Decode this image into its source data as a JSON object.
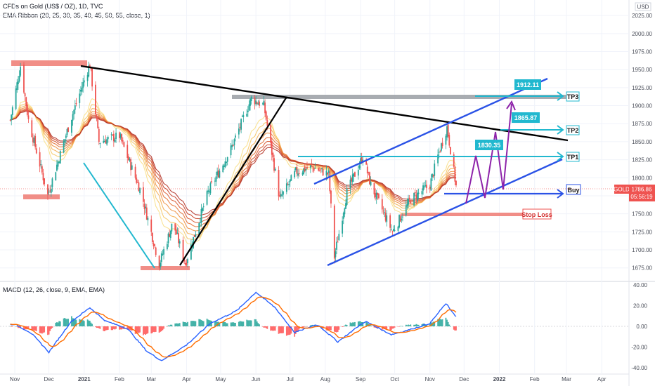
{
  "header": {
    "symbol_line": "CFDs on Gold (US$ / OZ), 1D, TVC",
    "indicator_line": "EMA Ribbon (20, 25, 30, 35, 40, 45, 50, 55, close, 1)",
    "currency": "USD",
    "macd_label": "MACD (12, 26, close, 9, EMA, EMA)"
  },
  "colors": {
    "up": "#26a69a",
    "down": "#ef5350",
    "trend": "#000000",
    "channel": "#2a52e6",
    "target": "#22b8cf",
    "projection": "#8e24aa",
    "zone": "#ef7a72",
    "resistance": "#9ea3a8",
    "macd_line": "#2962ff",
    "signal_line": "#ff6d00"
  },
  "chart_data": {
    "type": "candlestick",
    "x_tick_labels": [
      "Nov",
      "Dec",
      "2021",
      "Feb",
      "Mar",
      "Apr",
      "May",
      "Jun",
      "Jul",
      "Aug",
      "Sep",
      "Oct",
      "Nov",
      "Dec",
      "2022",
      "Feb",
      "Mar",
      "Apr"
    ],
    "price_axis": {
      "ticks": [
        "2025.00",
        "2000.00",
        "1975.00",
        "1950.00",
        "1925.00",
        "1900.00",
        "1875.00",
        "1850.00",
        "1825.00",
        "1800.00",
        "1775.00",
        "1750.00",
        "1725.00",
        "1700.00",
        "1675.00"
      ],
      "range": [
        1665,
        2030
      ]
    },
    "macd_axis": {
      "ticks": [
        "40.00",
        "20.00",
        "0.00",
        "-20.00",
        "-40.00"
      ],
      "range": [
        -42,
        42
      ]
    },
    "last_price": {
      "symbol": "GOLD",
      "value": "1786.86",
      "countdown": "05:56:19"
    },
    "price_path": [
      [
        "2020-10-28",
        1880
      ],
      [
        "2020-11-06",
        1955
      ],
      [
        "2020-11-13",
        1880
      ],
      [
        "2020-11-30",
        1776
      ],
      [
        "2020-12-20",
        1880
      ],
      [
        "2021-01-06",
        1958
      ],
      [
        "2021-01-14",
        1850
      ],
      [
        "2021-02-01",
        1858
      ],
      [
        "2021-02-20",
        1780
      ],
      [
        "2021-03-08",
        1680
      ],
      [
        "2021-03-20",
        1738
      ],
      [
        "2021-03-31",
        1681
      ],
      [
        "2021-04-20",
        1780
      ],
      [
        "2021-05-10",
        1840
      ],
      [
        "2021-05-28",
        1910
      ],
      [
        "2021-06-08",
        1900
      ],
      [
        "2021-06-22",
        1770
      ],
      [
        "2021-07-06",
        1808
      ],
      [
        "2021-07-20",
        1815
      ],
      [
        "2021-08-04",
        1805
      ],
      [
        "2021-08-09",
        1690
      ],
      [
        "2021-08-20",
        1780
      ],
      [
        "2021-09-03",
        1830
      ],
      [
        "2021-09-10",
        1790
      ],
      [
        "2021-09-29",
        1725
      ],
      [
        "2021-10-15",
        1770
      ],
      [
        "2021-11-01",
        1790
      ],
      [
        "2021-11-08",
        1830
      ],
      [
        "2021-11-16",
        1870
      ],
      [
        "2021-11-24",
        1788
      ]
    ],
    "macd_path": [
      [
        "2020-11-01",
        2
      ],
      [
        "2020-11-15",
        -6
      ],
      [
        "2020-12-01",
        -25
      ],
      [
        "2020-12-20",
        4
      ],
      [
        "2021-01-06",
        18
      ],
      [
        "2021-01-20",
        5
      ],
      [
        "2021-02-08",
        -2
      ],
      [
        "2021-02-25",
        -24
      ],
      [
        "2021-03-10",
        -33
      ],
      [
        "2021-04-01",
        -18
      ],
      [
        "2021-04-22",
        3
      ],
      [
        "2021-05-15",
        15
      ],
      [
        "2021-06-01",
        33
      ],
      [
        "2021-06-18",
        18
      ],
      [
        "2021-07-05",
        -6
      ],
      [
        "2021-07-25",
        2
      ],
      [
        "2021-08-12",
        -15
      ],
      [
        "2021-09-05",
        5
      ],
      [
        "2021-09-28",
        -8
      ],
      [
        "2021-10-15",
        -3
      ],
      [
        "2021-11-01",
        3
      ],
      [
        "2021-11-15",
        22
      ],
      [
        "2021-11-25",
        8
      ]
    ],
    "annotations": {
      "targets": [
        {
          "label": "TP3",
          "price_tag": "1912.11",
          "price": 1912.11
        },
        {
          "label": "TP2",
          "price_tag": "1865.87",
          "price": 1865.87
        },
        {
          "label": "TP1",
          "price_tag": "1830.35",
          "price": 1830.35
        }
      ],
      "buy": {
        "label": "Buy",
        "price": 1786
      },
      "stop": {
        "label": "Stop Loss",
        "price": 1752
      }
    }
  }
}
